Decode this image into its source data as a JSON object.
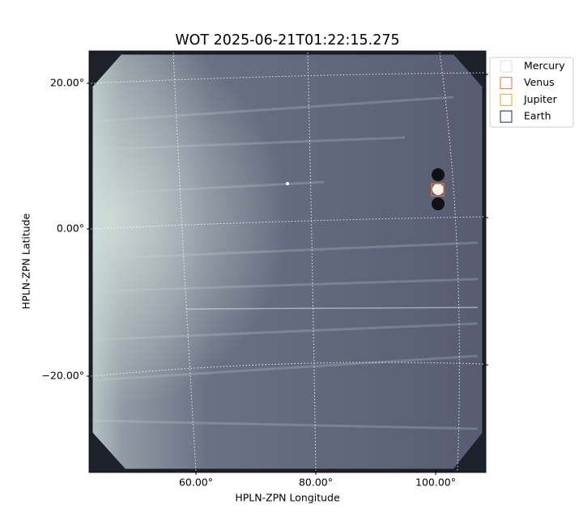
{
  "title": "WOT 2025-06-21T01:22:15.275",
  "x_axis": {
    "label": "HPLN-ZPN Longitude",
    "ticks": [
      "60.00°",
      "80.00°",
      "100.00°"
    ]
  },
  "y_axis": {
    "label": "HPLN-ZPN Latitude",
    "ticks": [
      "20.00°",
      "0.00°",
      "−20.00°"
    ]
  },
  "legend": [
    {
      "name": "Mercury",
      "color": "#dddddd"
    },
    {
      "name": "Venus",
      "color": "#d9773a"
    },
    {
      "name": "Jupiter",
      "color": "#e0a92a"
    },
    {
      "name": "Earth",
      "color": "#1a1f6e"
    }
  ]
}
